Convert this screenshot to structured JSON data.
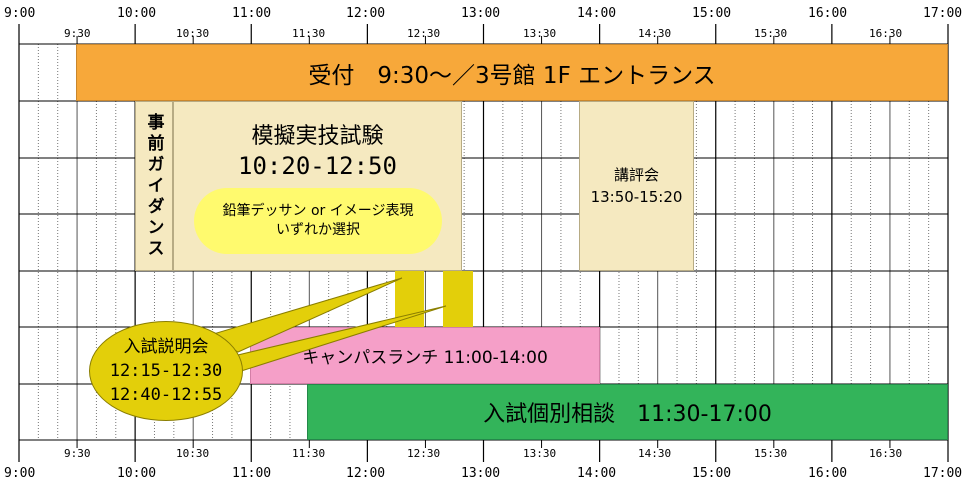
{
  "timeline": {
    "hour_ticks": [
      "9:00",
      "10:00",
      "11:00",
      "12:00",
      "13:00",
      "14:00",
      "15:00",
      "16:00",
      "17:00"
    ],
    "half_ticks": [
      "9:30",
      "10:30",
      "11:30",
      "12:30",
      "13:30",
      "14:30",
      "15:30",
      "16:30"
    ]
  },
  "events": {
    "reception": {
      "text": "受付　9:30～／3号館 1F エントランス",
      "color": "#f7a83a"
    },
    "pre_guidance": {
      "text": "事前ガイダンス",
      "color": "#f5e9c0"
    },
    "mock_exam": {
      "title": "模擬実技試験",
      "time": "10:20-12:50",
      "color": "#f5e9c0"
    },
    "mock_exam_option": {
      "line1": "鉛筆デッサン or イメージ表現",
      "line2": "いずれか選択",
      "color": "#fffa6e"
    },
    "review": {
      "title": "講評会",
      "time": "13:50-15:20",
      "color": "#f5e9c0"
    },
    "briefing_markers": {
      "color": "#e3cf0a"
    },
    "briefing_bubble": {
      "title": "入試説明会",
      "time1": "12:15-12:30",
      "time2": "12:40-12:55",
      "color": "#e3cf0a"
    },
    "campus_lunch": {
      "text": "キャンパスランチ 11:00-14:00",
      "color": "#f59fc8"
    },
    "consultation": {
      "text": "入試個別相談　11:30-17:00",
      "color": "#33b45a"
    }
  }
}
